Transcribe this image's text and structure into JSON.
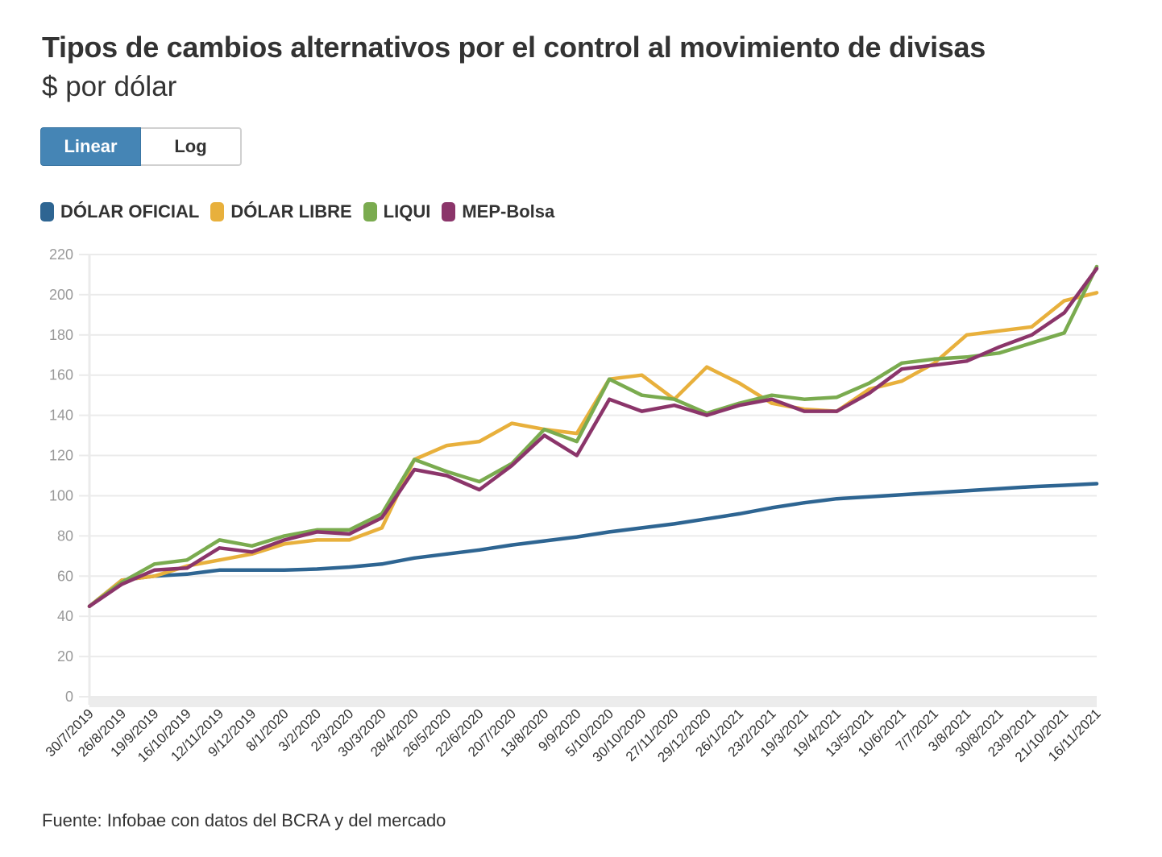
{
  "header": {
    "title": "Tipos de cambios alternativos por el control al movimiento de divisas",
    "subtitle": "$ por dólar"
  },
  "scale_toggle": {
    "options": [
      {
        "label": "Linear",
        "active": true
      },
      {
        "label": "Log",
        "active": false
      }
    ]
  },
  "legend": {
    "items": [
      {
        "label": "DÓLAR OFICIAL",
        "color": "#2e6592"
      },
      {
        "label": "DÓLAR LIBRE",
        "color": "#e8b03c"
      },
      {
        "label": "LIQUI",
        "color": "#7aab4f"
      },
      {
        "label": "MEP-Bolsa",
        "color": "#8b356a"
      }
    ]
  },
  "footer": {
    "source": "Fuente: Infobae con datos del BCRA y del mercado"
  },
  "colors": {
    "grid": "#ebebeb",
    "axis_tick_text": "#999999",
    "accent_button": "#4585b5"
  },
  "chart_data": {
    "type": "line",
    "title": "Tipos de cambios alternativos por el control al movimiento de divisas",
    "subtitle": "$ por dólar",
    "xlabel": "",
    "ylabel": "",
    "ylim": [
      0,
      220
    ],
    "yticks": [
      0,
      20,
      40,
      60,
      80,
      100,
      120,
      140,
      160,
      180,
      200,
      220
    ],
    "grid": true,
    "legend_position": "top-left",
    "x": [
      "30/7/2019",
      "26/8/2019",
      "19/9/2019",
      "16/10/2019",
      "12/11/2019",
      "9/12/2019",
      "8/1/2020",
      "3/2/2020",
      "2/3/2020",
      "30/3/2020",
      "28/4/2020",
      "26/5/2020",
      "22/6/2020",
      "20/7/2020",
      "13/8/2020",
      "9/9/2020",
      "5/10/2020",
      "30/10/2020",
      "27/11/2020",
      "29/12/2020",
      "26/1/2021",
      "23/2/2021",
      "19/3/2021",
      "19/4/2021",
      "13/5/2021",
      "10/6/2021",
      "7/7/2021",
      "3/8/2021",
      "30/8/2021",
      "23/9/2021",
      "21/10/2021",
      "16/11/2021"
    ],
    "series": [
      {
        "name": "DÓLAR OFICIAL",
        "color": "#2e6592",
        "values": [
          45,
          58,
          60,
          61,
          63,
          63,
          63,
          63.5,
          64.5,
          66,
          69,
          71,
          73,
          75.5,
          77.5,
          79.5,
          82,
          84,
          86,
          88.5,
          91,
          94,
          96.5,
          98.5,
          99.5,
          100.5,
          101.5,
          102.5,
          103.5,
          104.5,
          105.2,
          106
        ]
      },
      {
        "name": "DÓLAR LIBRE",
        "color": "#e8b03c",
        "values": [
          45,
          58,
          60,
          65,
          68,
          71,
          76,
          78,
          78,
          84,
          118,
          125,
          127,
          136,
          133,
          131,
          158,
          160,
          148,
          164,
          156,
          146,
          143,
          142,
          153,
          157,
          166,
          180,
          182,
          184,
          197,
          201
        ]
      },
      {
        "name": "LIQUI",
        "color": "#7aab4f",
        "values": [
          45,
          57,
          66,
          68,
          78,
          75,
          80,
          83,
          83,
          91,
          118,
          112,
          107,
          116,
          133,
          127,
          158,
          150,
          148,
          141,
          146,
          150,
          148,
          149,
          156,
          166,
          168,
          169,
          171,
          176,
          181,
          214
        ]
      },
      {
        "name": "MEP-Bolsa",
        "color": "#8b356a",
        "values": [
          45,
          56,
          63,
          64,
          74,
          72,
          78,
          82,
          81,
          89,
          113,
          110,
          103,
          115,
          130,
          120,
          148,
          142,
          145,
          140,
          145,
          148,
          142,
          142,
          151,
          163,
          165,
          167,
          174,
          180,
          191,
          213
        ]
      }
    ]
  }
}
